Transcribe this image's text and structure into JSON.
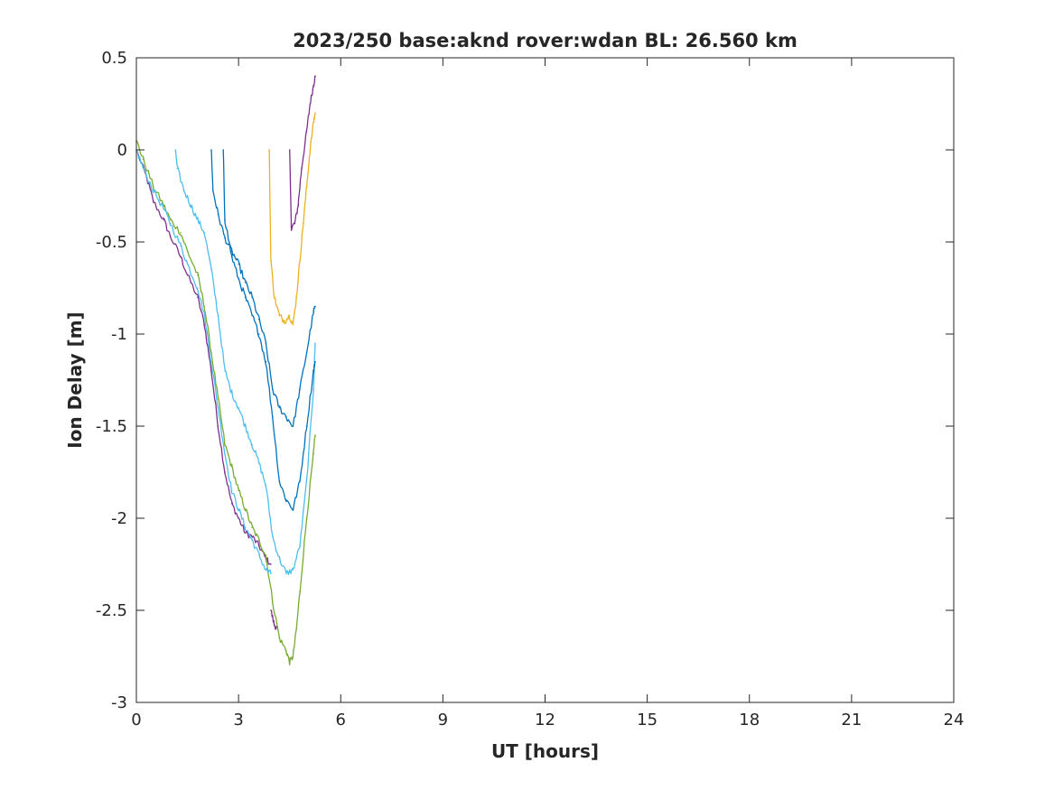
{
  "chart_data": {
    "type": "line",
    "title": "2023/250 base:aknd rover:wdan BL: 26.560 km",
    "xlabel": "UT [hours]",
    "ylabel": "Ion Delay [m]",
    "xlim": [
      0,
      24
    ],
    "ylim": [
      -3,
      0.5
    ],
    "xticks": [
      "0",
      "3",
      "6",
      "9",
      "12",
      "15",
      "18",
      "21",
      "24"
    ],
    "yticks": [
      "0.5",
      "0",
      "-0.5",
      "-1",
      "-1.5",
      "-2",
      "-2.5",
      "-3"
    ],
    "grid": false,
    "series": [
      {
        "color": "#7E2F8E",
        "x": [
          0.0,
          0.3,
          0.5,
          0.8,
          1.0,
          1.3,
          1.5,
          1.8,
          2.0,
          2.2,
          2.4,
          2.6,
          2.8,
          3.0,
          3.2,
          3.4,
          3.6,
          3.8,
          3.95
        ],
        "y": [
          0.0,
          -0.15,
          -0.28,
          -0.38,
          -0.47,
          -0.58,
          -0.68,
          -0.8,
          -0.95,
          -1.2,
          -1.5,
          -1.75,
          -1.92,
          -2.0,
          -2.08,
          -2.1,
          -2.15,
          -2.22,
          -2.25
        ]
      },
      {
        "color": "#7E2F8E",
        "x": [
          3.95,
          4.05,
          4.15
        ],
        "y": [
          -2.5,
          -2.58,
          -2.6
        ]
      },
      {
        "color": "#7E2F8E",
        "x": [
          4.5,
          4.55,
          4.65,
          4.75,
          4.85,
          5.0,
          5.1,
          5.2,
          5.25
        ],
        "y": [
          0.0,
          -0.42,
          -0.4,
          -0.3,
          -0.1,
          0.1,
          0.25,
          0.35,
          0.4
        ]
      },
      {
        "color": "#77AC30",
        "x": [
          0.0,
          0.2,
          0.5,
          0.8,
          1.0,
          1.3,
          1.5,
          1.8,
          2.0,
          2.2,
          2.4,
          2.6,
          2.8,
          3.0,
          3.2,
          3.4,
          3.6,
          3.8,
          4.0,
          4.2,
          4.4,
          4.5,
          4.6,
          4.7,
          4.8,
          5.0,
          5.2,
          5.25
        ],
        "y": [
          0.05,
          -0.05,
          -0.2,
          -0.3,
          -0.38,
          -0.45,
          -0.55,
          -0.68,
          -0.85,
          -1.1,
          -1.35,
          -1.6,
          -1.72,
          -1.85,
          -1.95,
          -2.05,
          -2.12,
          -2.2,
          -2.45,
          -2.65,
          -2.72,
          -2.78,
          -2.75,
          -2.6,
          -2.4,
          -2.0,
          -1.65,
          -1.55
        ]
      },
      {
        "color": "#4DBEEE",
        "x": [
          0.0,
          0.2,
          0.5,
          0.8,
          1.0,
          1.3,
          1.5,
          1.8,
          2.0,
          2.2,
          2.4,
          2.6,
          2.8,
          3.0,
          3.2,
          3.4,
          3.6,
          3.8,
          3.95
        ],
        "y": [
          0.0,
          -0.1,
          -0.22,
          -0.32,
          -0.4,
          -0.52,
          -0.62,
          -0.75,
          -0.9,
          -1.15,
          -1.4,
          -1.65,
          -1.85,
          -1.95,
          -2.05,
          -2.12,
          -2.2,
          -2.28,
          -2.3
        ]
      },
      {
        "color": "#4DBEEE",
        "x": [
          1.15,
          1.2,
          1.4,
          1.6,
          1.8,
          2.0,
          2.2,
          2.4,
          2.6,
          2.8,
          3.0,
          3.2,
          3.4,
          3.6,
          3.8,
          4.0,
          4.2,
          4.4,
          4.6,
          4.8,
          5.0,
          5.2,
          5.25
        ],
        "y": [
          0.0,
          -0.1,
          -0.22,
          -0.3,
          -0.38,
          -0.45,
          -0.65,
          -0.9,
          -1.2,
          -1.32,
          -1.4,
          -1.5,
          -1.6,
          -1.7,
          -1.82,
          -2.1,
          -2.22,
          -2.3,
          -2.28,
          -2.15,
          -1.8,
          -1.3,
          -1.05
        ]
      },
      {
        "color": "#0072BD",
        "x": [
          2.2,
          2.25,
          2.4,
          2.6,
          2.8,
          3.0,
          3.2,
          3.4,
          3.6,
          3.8,
          4.0,
          4.2,
          4.4,
          4.6,
          4.8,
          5.0,
          5.2,
          5.25
        ],
        "y": [
          0.0,
          -0.22,
          -0.35,
          -0.48,
          -0.55,
          -0.62,
          -0.72,
          -0.8,
          -0.92,
          -1.05,
          -1.3,
          -1.4,
          -1.45,
          -1.5,
          -1.3,
          -1.1,
          -0.88,
          -0.85
        ]
      },
      {
        "color": "#0072BD",
        "x": [
          2.55,
          2.6,
          2.8,
          3.0,
          3.2,
          3.4,
          3.6,
          3.8,
          4.0,
          4.2,
          4.4,
          4.6,
          4.8,
          5.0,
          5.2,
          5.25
        ],
        "y": [
          0.0,
          -0.38,
          -0.58,
          -0.7,
          -0.8,
          -0.9,
          -1.0,
          -1.15,
          -1.45,
          -1.8,
          -1.9,
          -1.95,
          -1.8,
          -1.5,
          -1.2,
          -1.15
        ]
      },
      {
        "color": "#EDB120",
        "x": [
          3.9,
          3.95,
          4.05,
          4.2,
          4.35,
          4.5,
          4.6,
          4.7,
          4.8,
          4.9,
          5.0,
          5.1,
          5.2,
          5.25
        ],
        "y": [
          0.0,
          -0.6,
          -0.8,
          -0.9,
          -0.93,
          -0.9,
          -0.95,
          -0.8,
          -0.6,
          -0.4,
          -0.2,
          0.0,
          0.15,
          0.2
        ]
      }
    ]
  }
}
